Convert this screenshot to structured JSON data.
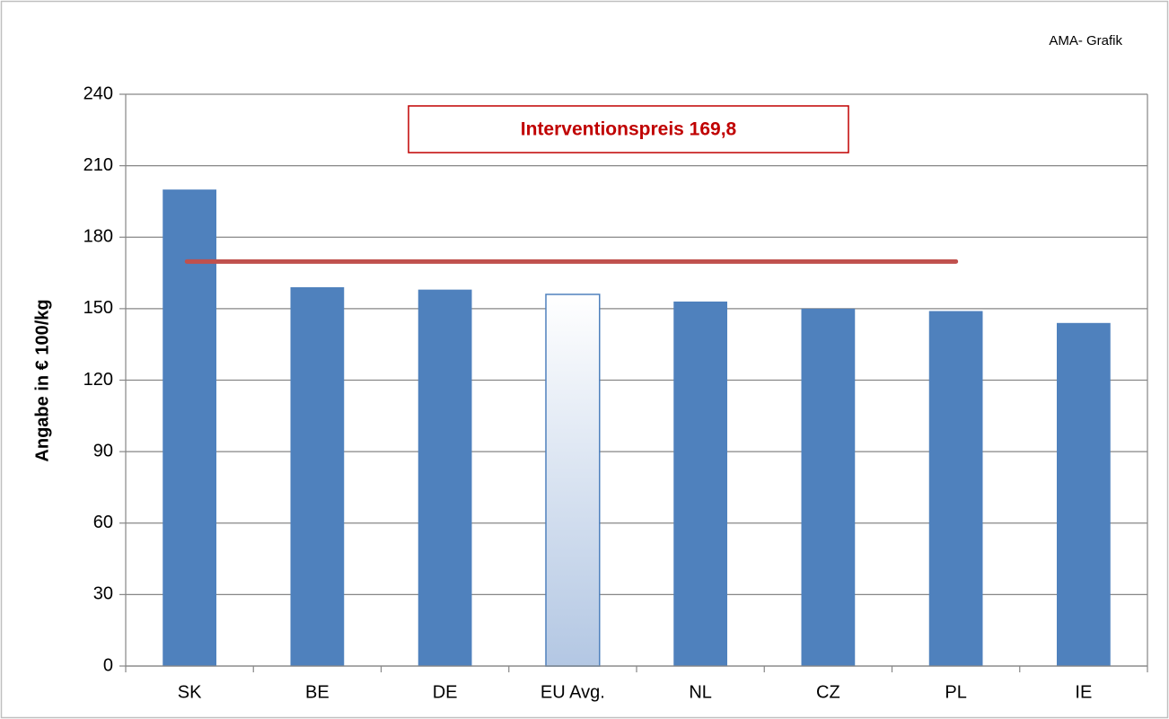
{
  "chart_data": {
    "type": "bar",
    "source": "AMA- Grafik",
    "y_label": "Angabe in € 100/kg",
    "categories": [
      "SK",
      "BE",
      "DE",
      "EU Avg.",
      "NL",
      "CZ",
      "PL",
      "IE"
    ],
    "values": [
      200,
      159,
      158,
      156,
      153,
      150,
      149,
      144
    ],
    "colors": [
      "#4f81bd",
      "#4f81bd",
      "#4f81bd",
      "#b3c7e3",
      "#4f81bd",
      "#4f81bd",
      "#4f81bd",
      "#4f81bd"
    ],
    "reference_line": {
      "value": 169.8,
      "label": "Interventionspreis 169,8",
      "color": "#c0504d"
    },
    "ylim": [
      0,
      240
    ],
    "yticks": [
      0,
      30,
      60,
      90,
      120,
      150,
      180,
      210,
      240
    ],
    "grid": true
  }
}
